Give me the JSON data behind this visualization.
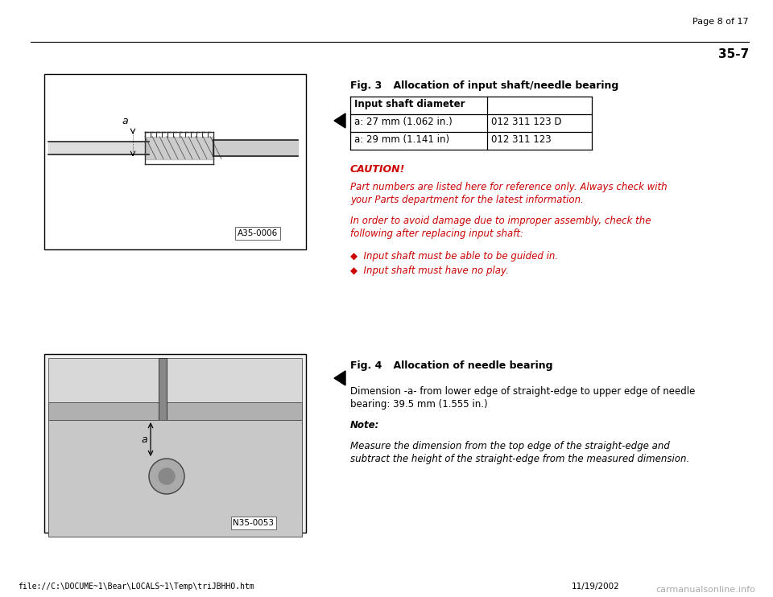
{
  "page_header": "Page 8 of 17",
  "section_number": "35-7",
  "bg_color": "#ffffff",
  "fig3_title_bold": "Fig. 3",
  "fig3_title_rest": "    Allocation of input shaft/needle bearing",
  "table_header_col1": "Input shaft diameter",
  "table_header_col2": "",
  "table_row1_col1": "a: 27 mm (1.062 in.)",
  "table_row1_col2": "012 311 123 D",
  "table_row2_col1": "a: 29 mm (1.141 in)",
  "table_row2_col2": "012 311 123",
  "caution_label": "CAUTION!",
  "caution_text1_line1": "Part numbers are listed here for reference only. Always check with",
  "caution_text1_line2": "your Parts department for the latest information.",
  "caution_text2_line1": "In order to avoid damage due to improper assembly, check the",
  "caution_text2_line2": "following after replacing input shaft:",
  "bullet1": "◆  Input shaft must be able to be guided in.",
  "bullet2": "◆  Input shaft must have no play.",
  "fig4_title_bold": "Fig. 4",
  "fig4_title_rest": "    Allocation of needle bearing",
  "fig4_text_line1": "Dimension -a- from lower edge of straight-edge to upper edge of needle",
  "fig4_text_line2": "bearing: 39.5 mm (1.555 in.)",
  "note_label": "Note:",
  "note_text_line1": "Measure the dimension from the top edge of the straight-edge and",
  "note_text_line2": "subtract the height of the straight-edge from the measured dimension.",
  "img1_label": "A35-0006",
  "img2_label": "N35-0053",
  "red_color": "#cc0000",
  "black_color": "#000000",
  "footer_left": "file://C:\\DOCUME~1\\Bear\\LOCALS~1\\Temp\\triJBHHO.htm",
  "footer_right_gray": "carmanualsonline.info",
  "footer_date": "11/19/2002"
}
